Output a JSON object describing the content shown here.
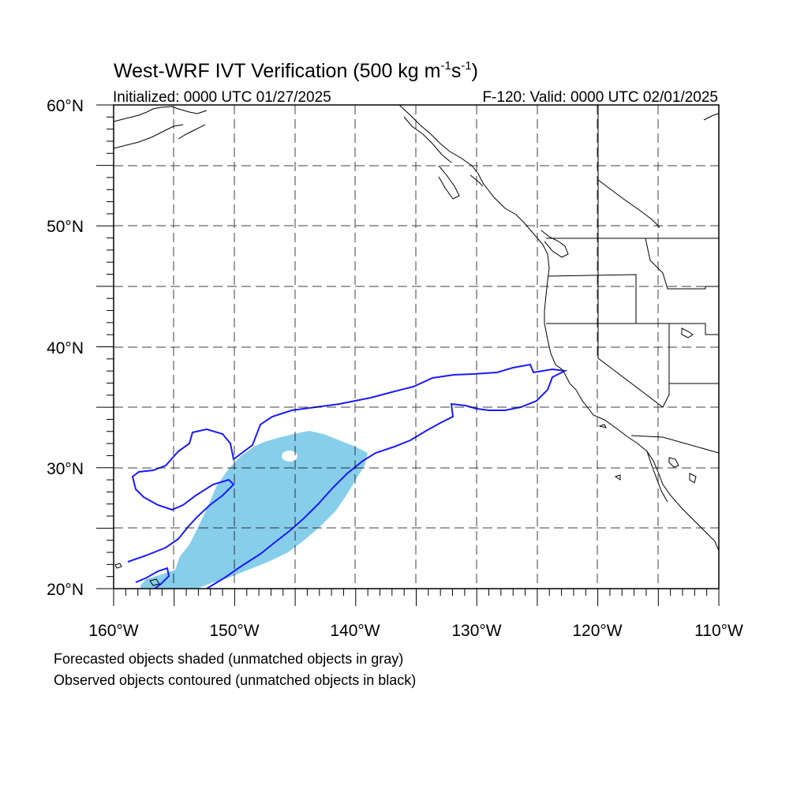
{
  "title": {
    "main": "West-WRF IVT Verification (500 kg m",
    "sup1": "-1",
    "mid": "s",
    "sup2": "-1",
    "close": ")"
  },
  "subtitle_left": "Initialized: 0000 UTC 01/27/2025",
  "subtitle_right": "F-120: Valid: 0000 UTC 02/01/2025",
  "lat_labels": [
    "60°N",
    "50°N",
    "40°N",
    "30°N",
    "20°N"
  ],
  "lon_labels": [
    "160°W",
    "150°W",
    "140°W",
    "130°W",
    "120°W",
    "110°W"
  ],
  "lat_range": [
    20,
    60
  ],
  "lon_range": [
    -160,
    -110
  ],
  "caption_1": "Forecasted objects shaded (unmatched objects in gray)",
  "caption_2": "Observed objects contoured (unmatched objects in black)",
  "colors": {
    "forecast_fill": "#87ceeb",
    "observed_contour": "#1a1aff",
    "coast": "#000000",
    "grid": "#000000"
  },
  "grid": "dashed, every 5 degrees"
}
